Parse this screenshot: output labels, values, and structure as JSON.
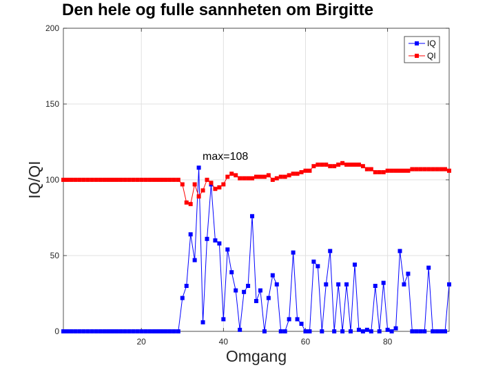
{
  "chart_data": {
    "type": "line",
    "title": "Den hele og fulle sannheten om Birgitte",
    "xlabel": "Omgang",
    "ylabel": "IQ/QI",
    "xlim": [
      1,
      95
    ],
    "ylim": [
      0,
      200
    ],
    "xticks": [
      20,
      40,
      60,
      80
    ],
    "yticks": [
      0,
      50,
      100,
      150,
      200
    ],
    "grid": true,
    "legend_position": "top-right",
    "annotation": {
      "text": "max=108",
      "x": 34,
      "y": 108
    },
    "series": [
      {
        "name": "IQ",
        "color": "#0000ff",
        "marker": "square",
        "values": [
          0,
          0,
          0,
          0,
          0,
          0,
          0,
          0,
          0,
          0,
          0,
          0,
          0,
          0,
          0,
          0,
          0,
          0,
          0,
          0,
          0,
          0,
          0,
          0,
          0,
          0,
          0,
          0,
          0,
          22,
          30,
          64,
          47,
          108,
          6,
          61,
          97,
          60,
          58,
          8,
          54,
          39,
          27,
          1,
          26,
          30,
          76,
          20,
          27,
          0,
          22,
          37,
          31,
          0,
          0,
          8,
          52,
          8,
          5,
          0,
          0,
          46,
          43,
          0,
          31,
          53,
          0,
          31,
          0,
          31,
          0,
          44,
          1,
          0,
          1,
          0,
          30,
          0,
          32,
          1,
          0,
          2,
          53,
          31,
          38,
          0,
          0,
          0,
          0,
          42,
          0,
          0,
          0,
          0,
          31
        ]
      },
      {
        "name": "QI",
        "color": "#ff0000",
        "marker": "square",
        "values": [
          100,
          100,
          100,
          100,
          100,
          100,
          100,
          100,
          100,
          100,
          100,
          100,
          100,
          100,
          100,
          100,
          100,
          100,
          100,
          100,
          100,
          100,
          100,
          100,
          100,
          100,
          100,
          100,
          100,
          97,
          85,
          84,
          97,
          89,
          93,
          100,
          98,
          94,
          95,
          97,
          102,
          104,
          103,
          101,
          101,
          101,
          101,
          102,
          102,
          102,
          103,
          100,
          101,
          102,
          102,
          103,
          104,
          104,
          105,
          106,
          106,
          109,
          110,
          110,
          110,
          109,
          109,
          110,
          111,
          110,
          110,
          110,
          110,
          109,
          107,
          107,
          105,
          105,
          105,
          106,
          106,
          106,
          106,
          106,
          106,
          107,
          107,
          107,
          107,
          107,
          107,
          107,
          107,
          107,
          106
        ]
      }
    ]
  }
}
